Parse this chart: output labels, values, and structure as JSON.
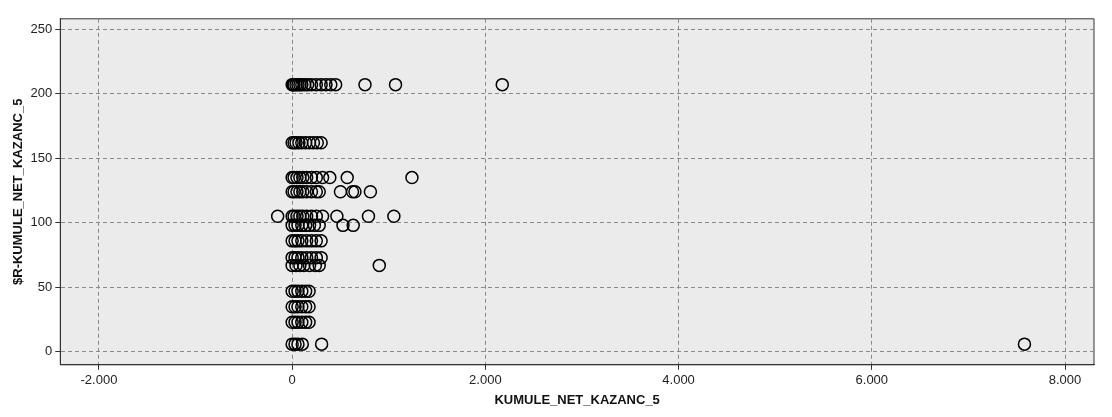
{
  "chart_data": {
    "type": "scatter",
    "xlabel": "KUMULE_NET_KAZANC_5",
    "ylabel": "$R-KUMULE_NET_KAZANC_5",
    "xlim": [
      -2400,
      8300
    ],
    "ylim": [
      -10,
      258
    ],
    "xticks": [
      {
        "value": -2000,
        "label": "-2.000"
      },
      0,
      {
        "value": 2000,
        "label": "2.000"
      },
      {
        "value": 4000,
        "label": "4.000"
      },
      {
        "value": 6000,
        "label": "6.000"
      },
      {
        "value": 8000,
        "label": "8.000"
      }
    ],
    "yticks": [
      0,
      50,
      100,
      150,
      200,
      250
    ],
    "grid": true,
    "legend": false,
    "marker": "circle",
    "series": [
      {
        "color": "#000000",
        "x": [
          0,
          10,
          20,
          40,
          60,
          80,
          100,
          130,
          160,
          200,
          250,
          300,
          350,
          400,
          450,
          754,
          1070,
          2175,
          0,
          20,
          40,
          70,
          100,
          140,
          180,
          220,
          260,
          300,
          0,
          20,
          50,
          80,
          110,
          150,
          200,
          250,
          315,
          390,
          570,
          1240,
          0,
          20,
          50,
          80,
          110,
          150,
          200,
          250,
          280,
          500,
          625,
          650,
          810,
          -150,
          0,
          20,
          50,
          80,
          110,
          150,
          200,
          250,
          315,
          463,
          790,
          1053,
          0,
          30,
          60,
          100,
          140,
          180,
          230,
          280,
          526,
          632,
          0,
          30,
          60,
          100,
          150,
          200,
          250,
          300,
          0,
          30,
          60,
          100,
          150,
          200,
          250,
          300,
          0,
          40,
          80,
          120,
          180,
          240,
          280,
          902,
          0,
          30,
          60,
          100,
          140,
          175,
          0,
          30,
          60,
          100,
          140,
          175,
          0,
          30,
          60,
          100,
          140,
          175,
          0,
          30,
          60,
          105,
          305,
          7580
        ],
        "values": [
          207,
          207,
          207,
          207,
          207,
          207,
          207,
          207,
          207,
          207,
          207,
          207,
          207,
          207,
          207,
          207,
          207,
          207,
          162,
          162,
          162,
          162,
          162,
          162,
          162,
          162,
          162,
          162,
          135,
          135,
          135,
          135,
          135,
          135,
          135,
          135,
          135,
          135,
          135,
          135,
          124,
          124,
          124,
          124,
          124,
          124,
          124,
          124,
          124,
          124,
          124,
          124,
          124,
          105,
          105,
          105,
          105,
          105,
          105,
          105,
          105,
          105,
          105,
          105,
          105,
          105,
          98,
          98,
          98,
          98,
          98,
          98,
          98,
          98,
          98,
          98,
          86,
          86,
          86,
          86,
          86,
          86,
          86,
          86,
          73,
          73,
          73,
          73,
          73,
          73,
          73,
          73,
          67,
          67,
          67,
          67,
          67,
          67,
          67,
          67,
          47,
          47,
          47,
          47,
          47,
          47,
          35,
          35,
          35,
          35,
          35,
          35,
          23,
          23,
          23,
          23,
          23,
          23,
          6,
          6,
          6,
          6,
          6,
          6
        ]
      }
    ]
  }
}
